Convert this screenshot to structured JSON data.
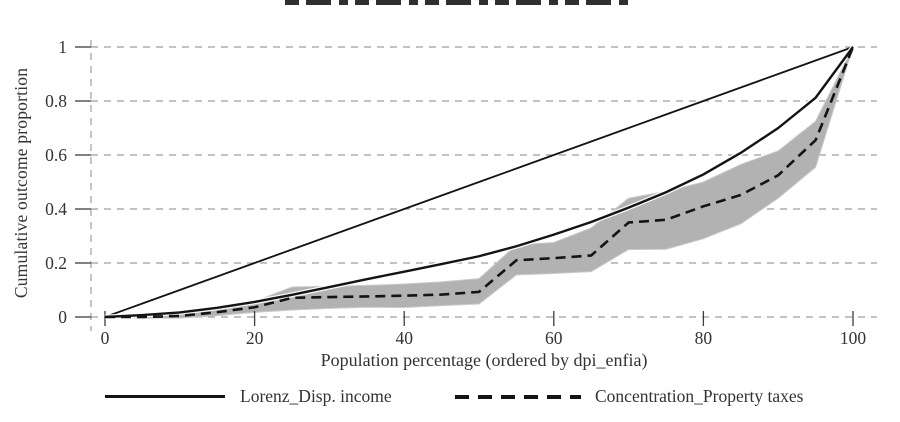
{
  "chart_data": {
    "type": "line",
    "title": "",
    "xlabel": "Population percentage (ordered by dpi_enfia)",
    "ylabel": "Cumulative outcome proportion",
    "xlim": [
      0,
      100
    ],
    "ylim": [
      0,
      1
    ],
    "xticks": [
      0,
      20,
      40,
      60,
      80,
      100
    ],
    "yticks": [
      0,
      0.2,
      0.4,
      0.6,
      0.8,
      1
    ],
    "xtick_labels": [
      "0",
      "20",
      "40",
      "60",
      "80",
      "100"
    ],
    "ytick_labels": [
      "0",
      "0.2",
      "0.4",
      "0.6",
      "0.8",
      "1"
    ],
    "grid": "horizontal dashed gridlines at y ticks plus one vertical dashed line at left axis",
    "legend_position": "bottom",
    "x": [
      0,
      5,
      10,
      15,
      20,
      25,
      30,
      35,
      40,
      45,
      50,
      55,
      60,
      65,
      70,
      75,
      80,
      85,
      90,
      95,
      100
    ],
    "series": [
      {
        "name": "diagonal_equality_line",
        "style": "thin-solid",
        "in_legend": false,
        "values": [
          0,
          0.05,
          0.1,
          0.15,
          0.2,
          0.25,
          0.3,
          0.35,
          0.4,
          0.45,
          0.5,
          0.55,
          0.6,
          0.65,
          0.7,
          0.75,
          0.8,
          0.85,
          0.9,
          0.95,
          1
        ]
      },
      {
        "name": "Lorenz_Disp. income",
        "style": "solid",
        "in_legend": true,
        "values": [
          0,
          0.007,
          0.017,
          0.034,
          0.056,
          0.082,
          0.111,
          0.14,
          0.168,
          0.196,
          0.225,
          0.262,
          0.305,
          0.352,
          0.405,
          0.462,
          0.528,
          0.608,
          0.7,
          0.812,
          1
        ]
      },
      {
        "name": "Concentration_Property taxes",
        "style": "dashed",
        "in_legend": true,
        "values": [
          0,
          0.0,
          0.004,
          0.018,
          0.036,
          0.071,
          0.074,
          0.076,
          0.079,
          0.083,
          0.093,
          0.21,
          0.218,
          0.228,
          0.35,
          0.36,
          0.41,
          0.452,
          0.525,
          0.655,
          1
        ],
        "ci_upper": [
          0,
          0.005,
          0.013,
          0.032,
          0.058,
          0.111,
          0.114,
          0.117,
          0.122,
          0.13,
          0.142,
          0.267,
          0.276,
          0.33,
          0.44,
          0.465,
          0.5,
          0.565,
          0.615,
          0.725,
          1
        ],
        "ci_lower": [
          0,
          -0.004,
          -0.004,
          0.005,
          0.017,
          0.026,
          0.032,
          0.036,
          0.035,
          0.042,
          0.048,
          0.156,
          0.161,
          0.168,
          0.25,
          0.251,
          0.29,
          0.345,
          0.44,
          0.555,
          1
        ]
      }
    ],
    "legend": {
      "items": [
        {
          "label": "Lorenz_Disp. income",
          "style": "solid"
        },
        {
          "label": "Concentration_Property taxes",
          "style": "dashed"
        }
      ]
    },
    "colors": {
      "line": "#141414",
      "halo": "#ffffff",
      "band": "#b2b2b2",
      "band_edge": "#c9c9c9",
      "grid": "#9e9e9e",
      "tick": "#3c3c3c",
      "text": "#333333"
    }
  }
}
